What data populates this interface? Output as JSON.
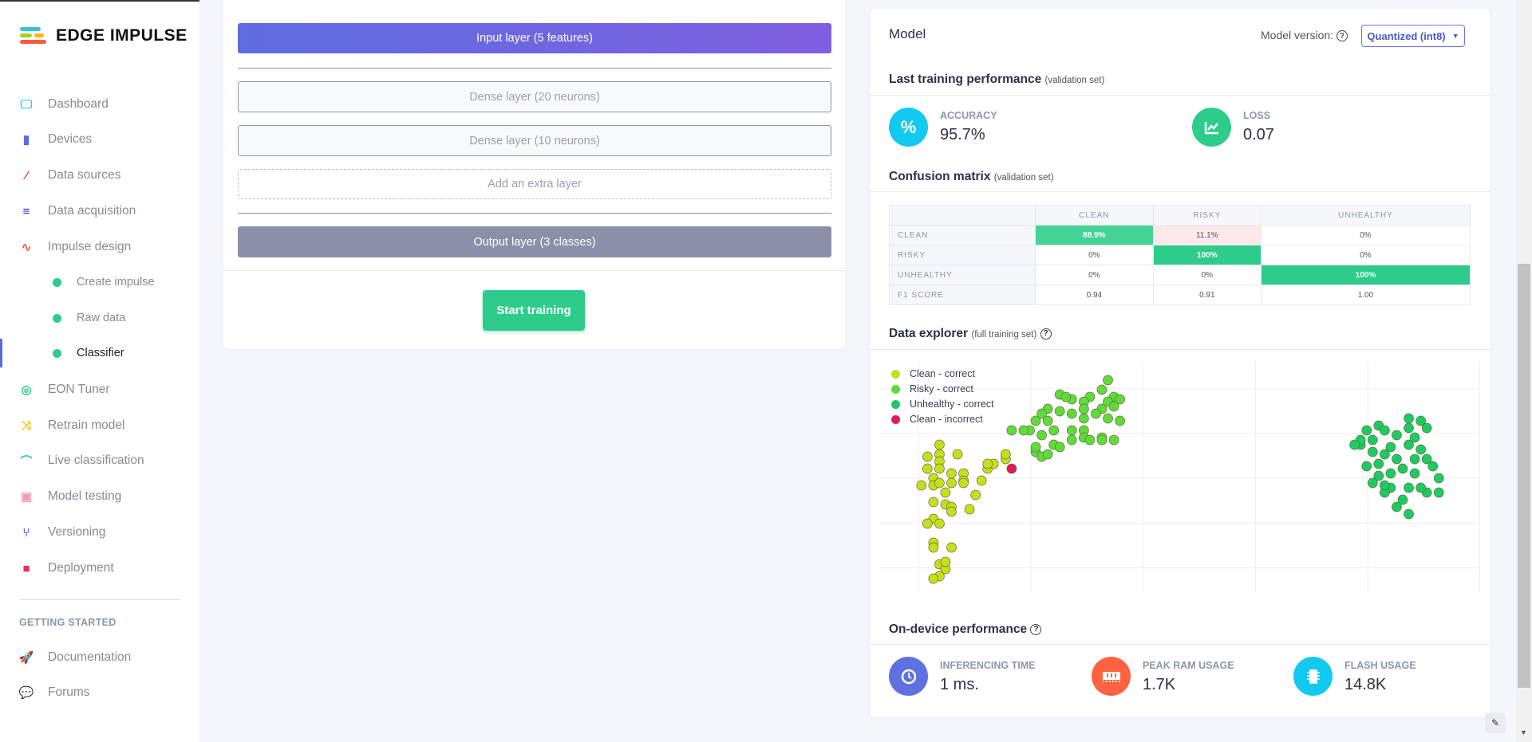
{
  "brand": {
    "name": "EDGE IMPULSE"
  },
  "sidebar": {
    "items": [
      {
        "label": "Dashboard",
        "icon": "monitor-icon",
        "color": "#1ec8e8"
      },
      {
        "label": "Devices",
        "icon": "chip-icon",
        "color": "#5b6bdf"
      },
      {
        "label": "Data sources",
        "icon": "magic-wand-icon",
        "color": "#e8334f"
      },
      {
        "label": "Data acquisition",
        "icon": "database-icon",
        "color": "#4b1ea8"
      },
      {
        "label": "Impulse design",
        "icon": "pulse-icon",
        "color": "#ff5a3c"
      },
      {
        "label": "Create impulse"
      },
      {
        "label": "Raw data"
      },
      {
        "label": "Classifier"
      },
      {
        "label": "EON Tuner",
        "icon": "compass-icon",
        "color": "#2ecc8a"
      },
      {
        "label": "Retrain model",
        "icon": "shuffle-icon",
        "color": "#f5c400"
      },
      {
        "label": "Live classification",
        "icon": "bezier-icon",
        "color": "#2ecc8a"
      },
      {
        "label": "Model testing",
        "icon": "clipboard-check-icon",
        "color": "#f49bb0"
      },
      {
        "label": "Versioning",
        "icon": "branch-icon",
        "color": "#5b6bdf"
      },
      {
        "label": "Deployment",
        "icon": "cube-icon",
        "color": "#e8334f"
      }
    ],
    "section": "GETTING STARTED",
    "footer": [
      {
        "label": "Documentation",
        "icon": "rocket-icon"
      },
      {
        "label": "Forums",
        "icon": "chat-icon"
      }
    ]
  },
  "nn": {
    "input": "Input layer (5 features)",
    "dense1": "Dense layer (20 neurons)",
    "dense2": "Dense layer (10 neurons)",
    "extra": "Add an extra layer",
    "output": "Output layer (3 classes)",
    "train_button": "Start training"
  },
  "model": {
    "title": "Model",
    "version_label": "Model version:",
    "version_value": "Quantized (int8)",
    "perf_title": "Last training performance",
    "perf_note": "(validation set)",
    "accuracy_label": "ACCURACY",
    "accuracy": "95.7%",
    "loss_label": "LOSS",
    "loss": "0.07",
    "cm_title": "Confusion matrix",
    "cm_note": "(validation set)",
    "cm": {
      "columns": [
        "CLEAN",
        "RISKY",
        "UNHEALTHY"
      ],
      "rows": [
        {
          "label": "CLEAN",
          "cells": [
            "88.9%",
            "11.1%",
            "0%"
          ]
        },
        {
          "label": "RISKY",
          "cells": [
            "0%",
            "100%",
            "0%"
          ]
        },
        {
          "label": "UNHEALTHY",
          "cells": [
            "0%",
            "0%",
            "100%"
          ]
        },
        {
          "label": "F1 SCORE",
          "cells": [
            "0.94",
            "0.91",
            "1.00"
          ]
        }
      ]
    },
    "explorer_title": "Data explorer",
    "explorer_note": "(full training set)",
    "ondevice_title": "On-device performance",
    "inference_label": "INFERENCING TIME",
    "inference": "1 ms.",
    "ram_label": "PEAK RAM USAGE",
    "ram": "1.7K",
    "flash_label": "FLASH USAGE",
    "flash": "14.8K"
  },
  "chart_data": {
    "type": "scatter",
    "xlim": [
      0,
      100
    ],
    "ylim": [
      0,
      100
    ],
    "grid": true,
    "legend": "top-left",
    "series": [
      {
        "name": "Clean - correct",
        "color": "#c5e01a",
        "points": [
          [
            10,
            65
          ],
          [
            10,
            61
          ],
          [
            8,
            60
          ],
          [
            13,
            61
          ],
          [
            10,
            58
          ],
          [
            10,
            55
          ],
          [
            8,
            55
          ],
          [
            9,
            51
          ],
          [
            12,
            53
          ],
          [
            14,
            53
          ],
          [
            7,
            48
          ],
          [
            9,
            48
          ],
          [
            10,
            49
          ],
          [
            12,
            49
          ],
          [
            14,
            50
          ],
          [
            17,
            50
          ],
          [
            18,
            55
          ],
          [
            19,
            57
          ],
          [
            21,
            59
          ],
          [
            21,
            61
          ],
          [
            16,
            44
          ],
          [
            11,
            45
          ],
          [
            9,
            41
          ],
          [
            11,
            40
          ],
          [
            15,
            38
          ],
          [
            12,
            39
          ],
          [
            9,
            34
          ],
          [
            8,
            32
          ],
          [
            10,
            32
          ],
          [
            12,
            37
          ],
          [
            9,
            24
          ],
          [
            9,
            22
          ],
          [
            12,
            22
          ],
          [
            10,
            15
          ],
          [
            11,
            13
          ],
          [
            10,
            10
          ],
          [
            9,
            9
          ],
          [
            11,
            16
          ],
          [
            14,
            49
          ],
          [
            18,
            57
          ]
        ]
      },
      {
        "name": "Risky - correct",
        "color": "#5fdc3a",
        "points": [
          [
            38,
            92
          ],
          [
            37,
            88
          ],
          [
            35,
            85
          ],
          [
            39,
            85
          ],
          [
            32,
            84
          ],
          [
            30,
            86
          ],
          [
            34,
            83
          ],
          [
            38,
            83
          ],
          [
            40,
            84
          ],
          [
            31,
            85
          ],
          [
            34,
            80
          ],
          [
            37,
            80
          ],
          [
            39,
            81
          ],
          [
            28,
            80
          ],
          [
            27,
            78
          ],
          [
            30,
            79
          ],
          [
            32,
            78
          ],
          [
            34,
            76
          ],
          [
            36,
            78
          ],
          [
            38,
            76
          ],
          [
            40,
            75
          ],
          [
            26,
            75
          ],
          [
            28,
            75
          ],
          [
            25,
            71
          ],
          [
            27,
            69
          ],
          [
            29,
            71
          ],
          [
            32,
            71
          ],
          [
            34,
            71
          ],
          [
            37,
            68
          ],
          [
            39,
            67
          ],
          [
            29,
            65
          ],
          [
            30,
            64
          ],
          [
            32,
            67
          ],
          [
            34,
            68
          ],
          [
            35,
            67
          ],
          [
            37,
            67
          ],
          [
            26,
            62
          ],
          [
            27,
            60
          ],
          [
            26,
            64
          ],
          [
            28,
            61
          ],
          [
            22,
            71
          ],
          [
            24,
            71
          ]
        ]
      },
      {
        "name": "Unhealthy - correct",
        "color": "#1ecb62",
        "points": [
          [
            83,
            73
          ],
          [
            84,
            71
          ],
          [
            88,
            76
          ],
          [
            90,
            75
          ],
          [
            91,
            72
          ],
          [
            88,
            72
          ],
          [
            86,
            69
          ],
          [
            81,
            71
          ],
          [
            80,
            65
          ],
          [
            80,
            67
          ],
          [
            82,
            67
          ],
          [
            85,
            64
          ],
          [
            84,
            61
          ],
          [
            88,
            65
          ],
          [
            90,
            63
          ],
          [
            89,
            59
          ],
          [
            91,
            59
          ],
          [
            92,
            56
          ],
          [
            93,
            51
          ],
          [
            93,
            45
          ],
          [
            91,
            45
          ],
          [
            90,
            47
          ],
          [
            88,
            47
          ],
          [
            87,
            42
          ],
          [
            86,
            39
          ],
          [
            88,
            36
          ],
          [
            85,
            47
          ],
          [
            83,
            52
          ],
          [
            82,
            49
          ],
          [
            81,
            56
          ],
          [
            83,
            57
          ],
          [
            85,
            53
          ],
          [
            87,
            55
          ],
          [
            89,
            53
          ],
          [
            84,
            45
          ],
          [
            86,
            59
          ],
          [
            79,
            65
          ],
          [
            89,
            68
          ],
          [
            82,
            62
          ],
          [
            84,
            48
          ]
        ]
      },
      {
        "name": "Clean - incorrect",
        "color": "#e0195a",
        "points": [
          [
            22,
            55
          ]
        ]
      }
    ]
  }
}
